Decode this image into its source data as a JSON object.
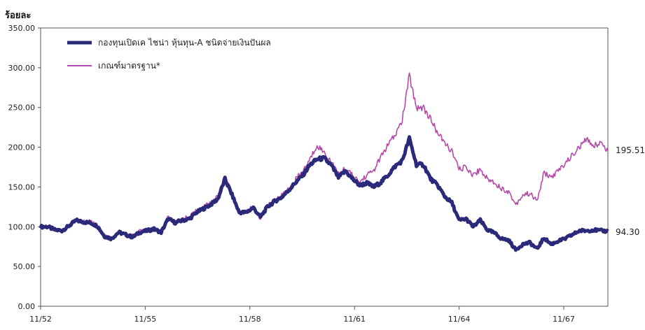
{
  "chart_data": {
    "type": "line",
    "title": "",
    "ylabel": "ร้อยละ",
    "xlabel": "",
    "ylim": [
      0,
      350
    ],
    "y_ticks": [
      "0.00",
      "50.00",
      "100.00",
      "150.00",
      "200.00",
      "250.00",
      "300.00",
      "350.00"
    ],
    "x_ticks": [
      "11/52",
      "11/55",
      "11/58",
      "11/61",
      "11/64",
      "11/67"
    ],
    "grid": false,
    "legend_position": "top-left",
    "series": [
      {
        "name": "กองทุนเปิดเค ไชน่า หุ้นทุน-A ชนิดจ่ายเงินปันผล",
        "color": "#2b2a7a",
        "end_label": "94.30",
        "values": [
          [
            0,
            100
          ],
          [
            1,
            100
          ],
          [
            2,
            96
          ],
          [
            3,
            95
          ],
          [
            4,
            101
          ],
          [
            5,
            108
          ],
          [
            6,
            106
          ],
          [
            7,
            105
          ],
          [
            8,
            101
          ],
          [
            9,
            88
          ],
          [
            10,
            85
          ],
          [
            11,
            93
          ],
          [
            12,
            90
          ],
          [
            13,
            87
          ],
          [
            14,
            93
          ],
          [
            15,
            95
          ],
          [
            16,
            97
          ],
          [
            17,
            93
          ],
          [
            18,
            110
          ],
          [
            19,
            105
          ],
          [
            20,
            108
          ],
          [
            21,
            110
          ],
          [
            22,
            118
          ],
          [
            23,
            123
          ],
          [
            24,
            128
          ],
          [
            25,
            135
          ],
          [
            26,
            160
          ],
          [
            27,
            140
          ],
          [
            28,
            118
          ],
          [
            29,
            118
          ],
          [
            30,
            124
          ],
          [
            31,
            112
          ],
          [
            32,
            125
          ],
          [
            33,
            132
          ],
          [
            34,
            137
          ],
          [
            35,
            146
          ],
          [
            36,
            156
          ],
          [
            37,
            165
          ],
          [
            38,
            178
          ],
          [
            39,
            185
          ],
          [
            40,
            186
          ],
          [
            41,
            177
          ],
          [
            42,
            162
          ],
          [
            43,
            170
          ],
          [
            44,
            160
          ],
          [
            45,
            152
          ],
          [
            46,
            155
          ],
          [
            47,
            150
          ],
          [
            48,
            156
          ],
          [
            49,
            165
          ],
          [
            50,
            176
          ],
          [
            51,
            183
          ],
          [
            52,
            211
          ],
          [
            53,
            178
          ],
          [
            54,
            178
          ],
          [
            55,
            160
          ],
          [
            56,
            152
          ],
          [
            57,
            138
          ],
          [
            58,
            130
          ],
          [
            59,
            108
          ],
          [
            60,
            110
          ],
          [
            61,
            100
          ],
          [
            62,
            108
          ],
          [
            63,
            96
          ],
          [
            64,
            92
          ],
          [
            65,
            85
          ],
          [
            66,
            83
          ],
          [
            67,
            71
          ],
          [
            68,
            78
          ],
          [
            69,
            80
          ],
          [
            70,
            72
          ],
          [
            71,
            86
          ],
          [
            72,
            78
          ],
          [
            73,
            82
          ],
          [
            74,
            85
          ],
          [
            75,
            90
          ],
          [
            76,
            95
          ],
          [
            77,
            95
          ],
          [
            78,
            96
          ],
          [
            79,
            95
          ],
          [
            80,
            94.3
          ]
        ]
      },
      {
        "name": "เกณฑ์มาตรฐาน*",
        "color": "#b54aa8",
        "end_label": "195.51",
        "values": [
          [
            0,
            100
          ],
          [
            1,
            102
          ],
          [
            2,
            97
          ],
          [
            3,
            96
          ],
          [
            4,
            102
          ],
          [
            5,
            109
          ],
          [
            6,
            107
          ],
          [
            7,
            106
          ],
          [
            8,
            102
          ],
          [
            9,
            89
          ],
          [
            10,
            84
          ],
          [
            11,
            94
          ],
          [
            12,
            91
          ],
          [
            13,
            88
          ],
          [
            14,
            94
          ],
          [
            15,
            96
          ],
          [
            16,
            98
          ],
          [
            17,
            94
          ],
          [
            18,
            112
          ],
          [
            19,
            106
          ],
          [
            20,
            110
          ],
          [
            21,
            112
          ],
          [
            22,
            120
          ],
          [
            23,
            125
          ],
          [
            24,
            130
          ],
          [
            25,
            138
          ],
          [
            26,
            163
          ],
          [
            27,
            142
          ],
          [
            28,
            117
          ],
          [
            29,
            119
          ],
          [
            30,
            125
          ],
          [
            31,
            110
          ],
          [
            32,
            127
          ],
          [
            33,
            134
          ],
          [
            34,
            139
          ],
          [
            35,
            148
          ],
          [
            36,
            160
          ],
          [
            37,
            170
          ],
          [
            38,
            185
          ],
          [
            39,
            203
          ],
          [
            40,
            193
          ],
          [
            41,
            182
          ],
          [
            42,
            166
          ],
          [
            43,
            174
          ],
          [
            44,
            164
          ],
          [
            45,
            156
          ],
          [
            46,
            165
          ],
          [
            47,
            171
          ],
          [
            48,
            188
          ],
          [
            49,
            203
          ],
          [
            50,
            215
          ],
          [
            51,
            234
          ],
          [
            52,
            290
          ],
          [
            53,
            250
          ],
          [
            54,
            250
          ],
          [
            55,
            235
          ],
          [
            56,
            218
          ],
          [
            57,
            205
          ],
          [
            58,
            195
          ],
          [
            59,
            172
          ],
          [
            60,
            175
          ],
          [
            61,
            165
          ],
          [
            62,
            172
          ],
          [
            63,
            160
          ],
          [
            64,
            156
          ],
          [
            65,
            148
          ],
          [
            66,
            144
          ],
          [
            67,
            128
          ],
          [
            68,
            140
          ],
          [
            69,
            142
          ],
          [
            70,
            132
          ],
          [
            71,
            168
          ],
          [
            72,
            162
          ],
          [
            73,
            170
          ],
          [
            74,
            180
          ],
          [
            75,
            190
          ],
          [
            76,
            200
          ],
          [
            77,
            210
          ],
          [
            78,
            202
          ],
          [
            79,
            206
          ],
          [
            80,
            195.51
          ]
        ]
      }
    ]
  }
}
